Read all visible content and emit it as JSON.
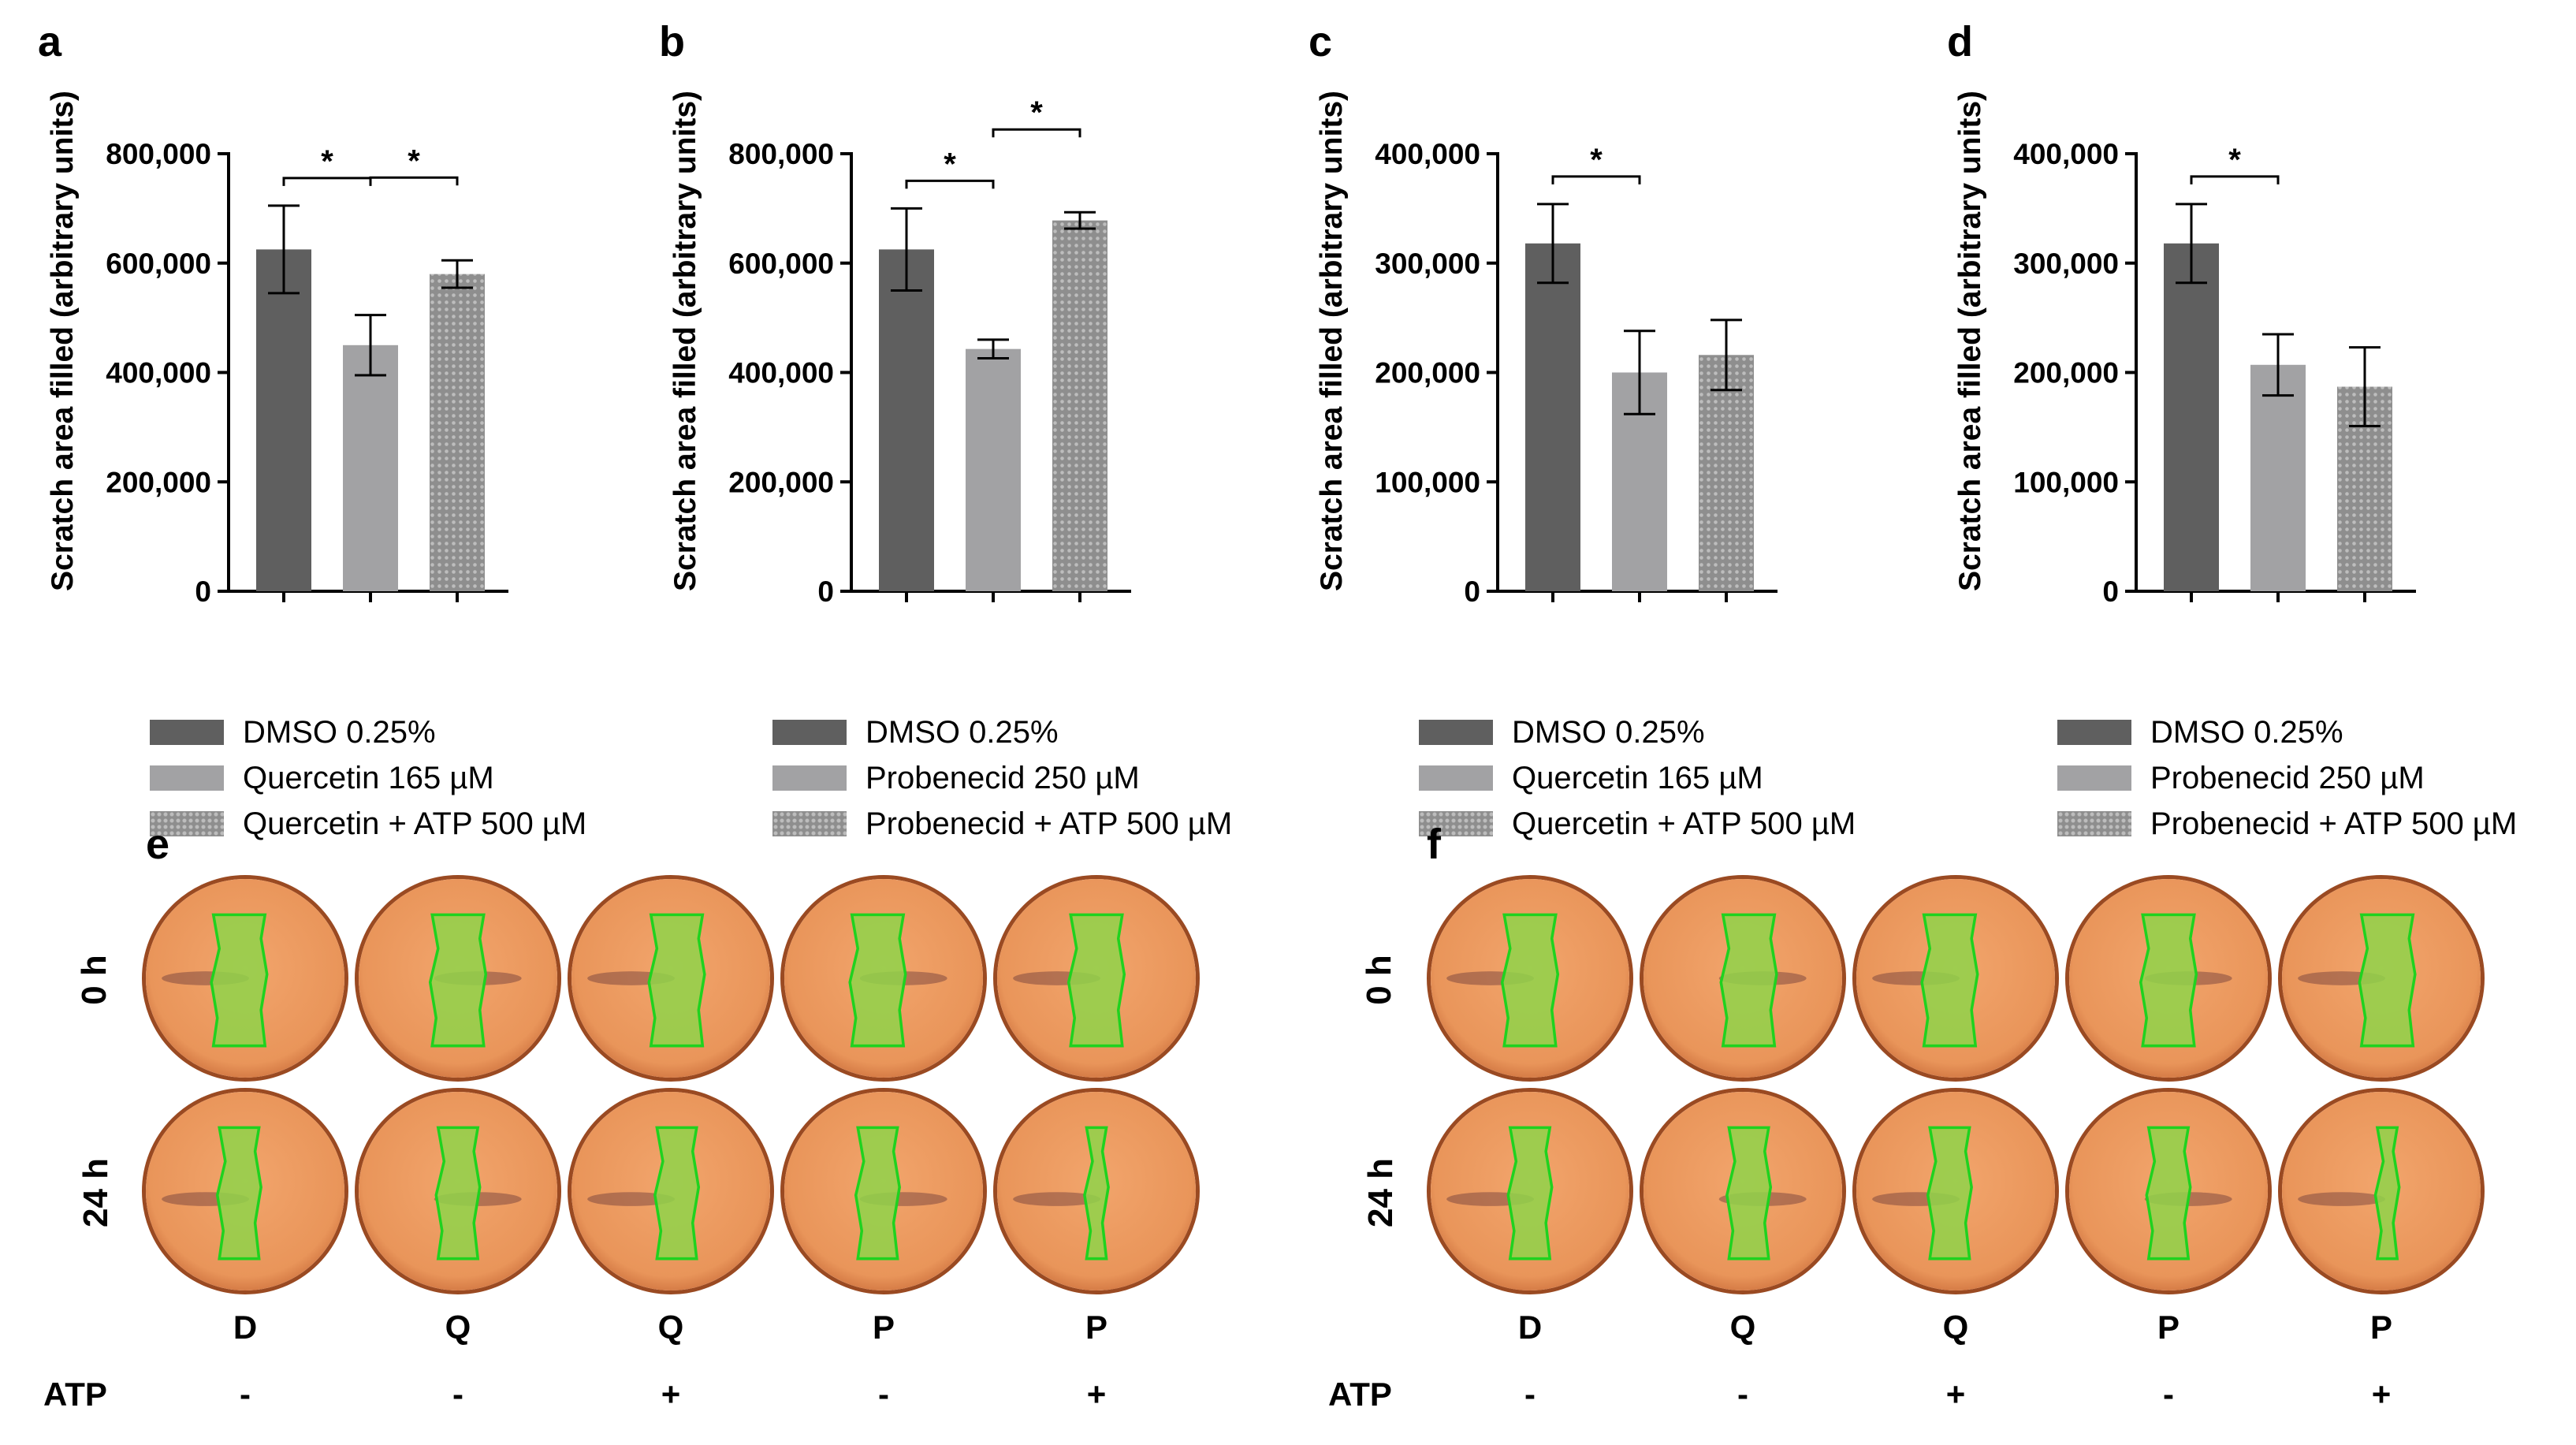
{
  "colors": {
    "dark": "#5f5f5f",
    "light": "#a2a2a4",
    "pattern_base": "#8e8e8e",
    "pattern_dot": "#bdbdbd",
    "well_fill": "#e9955a",
    "well_rim": "#9a4a22",
    "scratch": "#8fd44a",
    "scratch_edge": "#1fd21f"
  },
  "chart_data": [
    {
      "panel": "a",
      "type": "bar",
      "ylabel": "Scratch area filled (arbitrary units)",
      "ylim": [
        0,
        800000
      ],
      "yticks": [
        0,
        200000,
        400000,
        600000,
        800000
      ],
      "ytick_labels": [
        "0",
        "200,000",
        "400,000",
        "600,000",
        "800,000"
      ],
      "categories": [
        "DMSO 0.25%",
        "Quercetin 165 µM",
        "Quercetin + ATP 500 µM"
      ],
      "values": [
        625000,
        450000,
        580000
      ],
      "errors": [
        80000,
        55000,
        25000
      ],
      "significance": [
        {
          "from": 0,
          "to": 1,
          "label": "*"
        },
        {
          "from": 1,
          "to": 2,
          "label": "*"
        }
      ]
    },
    {
      "panel": "b",
      "type": "bar",
      "ylabel": "Scratch area filled (arbitrary units)",
      "ylim": [
        0,
        800000
      ],
      "yticks": [
        0,
        200000,
        400000,
        600000,
        800000
      ],
      "ytick_labels": [
        "0",
        "200,000",
        "400,000",
        "600,000",
        "800,000"
      ],
      "categories": [
        "DMSO 0.25%",
        "Probenecid 250 µM",
        "Probenecid + ATP 500 µM"
      ],
      "values": [
        625000,
        443000,
        678000
      ],
      "errors": [
        75000,
        17000,
        15000
      ],
      "significance": [
        {
          "from": 0,
          "to": 1,
          "label": "*"
        },
        {
          "from": 1,
          "to": 2,
          "label": "*"
        }
      ]
    },
    {
      "panel": "c",
      "type": "bar",
      "ylabel": "Scratch area filled (arbitrary units)",
      "ylim": [
        0,
        400000
      ],
      "yticks": [
        0,
        100000,
        200000,
        300000,
        400000
      ],
      "ytick_labels": [
        "0",
        "100,000",
        "200,000",
        "300,000",
        "400,000"
      ],
      "categories": [
        "DMSO 0.25%",
        "Quercetin 165 µM",
        "Quercetin + ATP 500 µM"
      ],
      "values": [
        318000,
        200000,
        216000
      ],
      "errors": [
        36000,
        38000,
        32000
      ],
      "significance": [
        {
          "from": 0,
          "to": 1,
          "label": "*"
        }
      ]
    },
    {
      "panel": "d",
      "type": "bar",
      "ylabel": "Scratch area filled (arbitrary units)",
      "ylim": [
        0,
        400000
      ],
      "yticks": [
        0,
        100000,
        200000,
        300000,
        400000
      ],
      "ytick_labels": [
        "0",
        "100,000",
        "200,000",
        "300,000",
        "400,000"
      ],
      "categories": [
        "DMSO 0.25%",
        "Probenecid 250 µM",
        "Probenecid + ATP 500 µM"
      ],
      "values": [
        318000,
        207000,
        187000
      ],
      "errors": [
        36000,
        28000,
        36000
      ],
      "significance": [
        {
          "from": 0,
          "to": 1,
          "label": "*"
        }
      ]
    }
  ],
  "photo_panels": [
    {
      "letter": "e",
      "rows": [
        "0 h",
        "24 h"
      ],
      "columns": [
        "D",
        "Q",
        "Q",
        "P",
        "P"
      ],
      "atp_label": "ATP",
      "atp": [
        "-",
        "-",
        "+",
        "-",
        "+"
      ]
    },
    {
      "letter": "f",
      "rows": [
        "0 h",
        "24 h"
      ],
      "columns": [
        "D",
        "Q",
        "Q",
        "P",
        "P"
      ],
      "atp_label": "ATP",
      "atp": [
        "-",
        "-",
        "+",
        "-",
        "+"
      ]
    }
  ]
}
